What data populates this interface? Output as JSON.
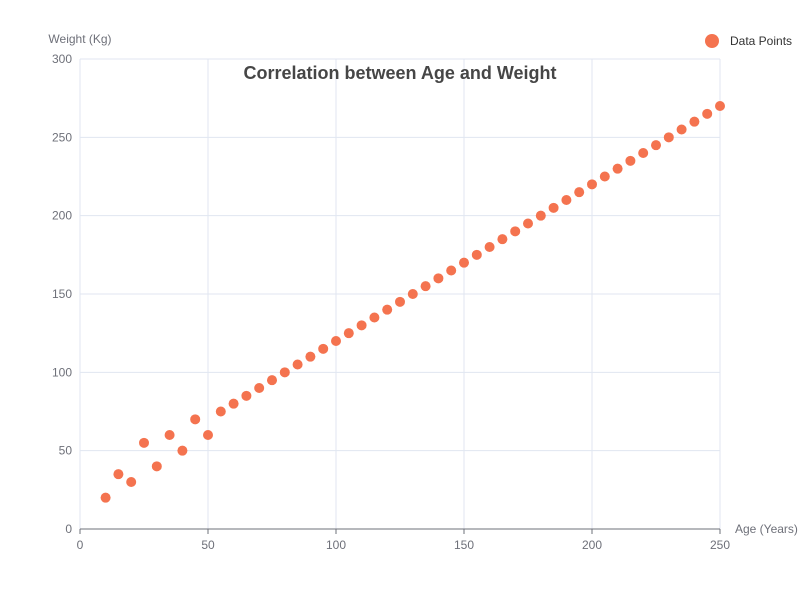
{
  "chart_data": {
    "type": "scatter",
    "title": "Correlation between Age and Weight",
    "xlabel": "Age (Years)",
    "ylabel": "Weight (Kg)",
    "xlim": [
      0,
      250
    ],
    "ylim": [
      0,
      300
    ],
    "x_ticks": [
      0,
      50,
      100,
      150,
      200,
      250
    ],
    "y_ticks": [
      0,
      50,
      100,
      150,
      200,
      250,
      300
    ],
    "grid": true,
    "legend_position": "top-right",
    "series": [
      {
        "name": "Data Points",
        "color": "#f4734f",
        "points": [
          [
            10,
            20
          ],
          [
            15,
            35
          ],
          [
            20,
            30
          ],
          [
            25,
            55
          ],
          [
            30,
            40
          ],
          [
            35,
            60
          ],
          [
            40,
            50
          ],
          [
            45,
            70
          ],
          [
            50,
            60
          ],
          [
            55,
            75
          ],
          [
            60,
            80
          ],
          [
            65,
            85
          ],
          [
            70,
            90
          ],
          [
            75,
            95
          ],
          [
            80,
            100
          ],
          [
            85,
            105
          ],
          [
            90,
            110
          ],
          [
            95,
            115
          ],
          [
            100,
            120
          ],
          [
            105,
            125
          ],
          [
            110,
            130
          ],
          [
            115,
            135
          ],
          [
            120,
            140
          ],
          [
            125,
            145
          ],
          [
            130,
            150
          ],
          [
            135,
            155
          ],
          [
            140,
            160
          ],
          [
            145,
            165
          ],
          [
            150,
            170
          ],
          [
            155,
            175
          ],
          [
            160,
            180
          ],
          [
            165,
            185
          ],
          [
            170,
            190
          ],
          [
            175,
            195
          ],
          [
            180,
            200
          ],
          [
            185,
            205
          ],
          [
            190,
            210
          ],
          [
            195,
            215
          ],
          [
            200,
            220
          ],
          [
            205,
            225
          ],
          [
            210,
            230
          ],
          [
            215,
            235
          ],
          [
            220,
            240
          ],
          [
            225,
            245
          ],
          [
            230,
            250
          ],
          [
            235,
            255
          ],
          [
            240,
            260
          ],
          [
            245,
            265
          ],
          [
            250,
            270
          ]
        ]
      }
    ]
  }
}
